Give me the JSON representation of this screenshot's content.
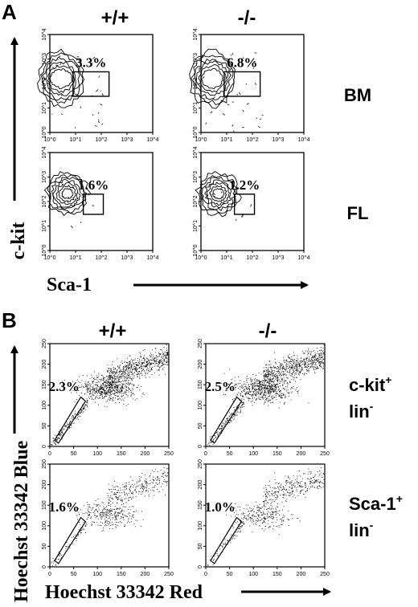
{
  "figure": {
    "panel_a": {
      "letter": "A",
      "columns": [
        "+/+",
        "-/-"
      ],
      "rows": [
        "BM",
        "FL"
      ],
      "x_axis_label": "Sca-1",
      "y_axis_label": "c-kit"
    },
    "panel_b": {
      "letter": "B",
      "columns": [
        "+/+",
        "-/-"
      ],
      "rows": [
        {
          "main": "c-kit",
          "sup": "+",
          "sub": "lin",
          "subsup": "-"
        },
        {
          "main": "Sca-1",
          "sup": "+",
          "sub": "lin",
          "subsup": "-"
        }
      ],
      "x_axis_label": "Hoechst 33342 Red",
      "y_axis_label": "Hoechst 33342 Blue"
    }
  },
  "chart_data": [
    {
      "type": "contour",
      "panel": "A",
      "x_scale": "log",
      "y_scale": "log",
      "xlim": [
        1,
        10000
      ],
      "ylim": [
        1,
        10000
      ],
      "tick_labels": [
        "10^0",
        "10^1",
        "10^2",
        "10^3",
        "10^4"
      ],
      "plots": [
        {
          "row": "BM",
          "column": "+/+",
          "gate_percent": "3.3%",
          "gate": {
            "x": [
              8,
              200
            ],
            "y": [
              30,
              300
            ]
          }
        },
        {
          "row": "BM",
          "column": "-/-",
          "gate_percent": "6.8%",
          "gate": {
            "x": [
              8,
              200
            ],
            "y": [
              30,
              300
            ]
          }
        },
        {
          "row": "FL",
          "column": "+/+",
          "gate_percent": "1.6%",
          "gate": {
            "x": [
              20,
              120
            ],
            "y": [
              30,
              200
            ]
          }
        },
        {
          "row": "FL",
          "column": "-/-",
          "gate_percent": "1.2%",
          "gate": {
            "x": [
              20,
              120
            ],
            "y": [
              30,
              200
            ]
          }
        }
      ]
    },
    {
      "type": "scatter",
      "panel": "B",
      "xlim": [
        0,
        250
      ],
      "ylim": [
        0,
        250
      ],
      "ticks": [
        0,
        50,
        100,
        150,
        200,
        250
      ],
      "plots": [
        {
          "row": "c-kit+ lin-",
          "column": "+/+",
          "gate_percent": "2.3%"
        },
        {
          "row": "c-kit+ lin-",
          "column": "-/-",
          "gate_percent": "2.5%"
        },
        {
          "row": "Sca-1+ lin-",
          "column": "+/+",
          "gate_percent": "1.6%"
        },
        {
          "row": "Sca-1+ lin-",
          "column": "-/-",
          "gate_percent": "1.0%"
        }
      ]
    }
  ]
}
